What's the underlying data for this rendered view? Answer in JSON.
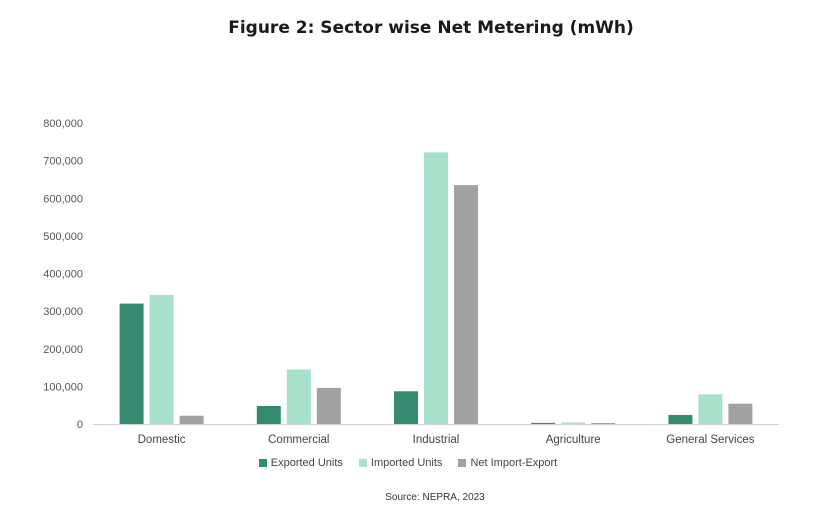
{
  "chart_data": {
    "type": "bar",
    "title": "Figure 2: Sector wise Net Metering  (mWh)",
    "source": "Source: NEPRA, 2023",
    "categories": [
      "Domestic",
      "Commercial",
      "Industrial",
      "Agriculture",
      "General Services"
    ],
    "ylim": [
      0,
      800000
    ],
    "yticks": [
      "0",
      "100,000",
      "200,000",
      "300,000",
      "400,000",
      "500,000",
      "600,000",
      "700,000",
      "800,000"
    ],
    "grid": false,
    "legend_position": "bottom",
    "series": [
      {
        "name": "Exported Units",
        "color": "#358a72",
        "values": [
          320000,
          48000,
          87000,
          3000,
          24000
        ]
      },
      {
        "name": "Imported Units",
        "color": "#a8e1c9",
        "values": [
          343000,
          145000,
          722000,
          4000,
          79000
        ]
      },
      {
        "name": "Net Import-Export",
        "color": "#a2a2a2",
        "values": [
          22000,
          96000,
          635000,
          2000,
          54000
        ]
      }
    ]
  }
}
